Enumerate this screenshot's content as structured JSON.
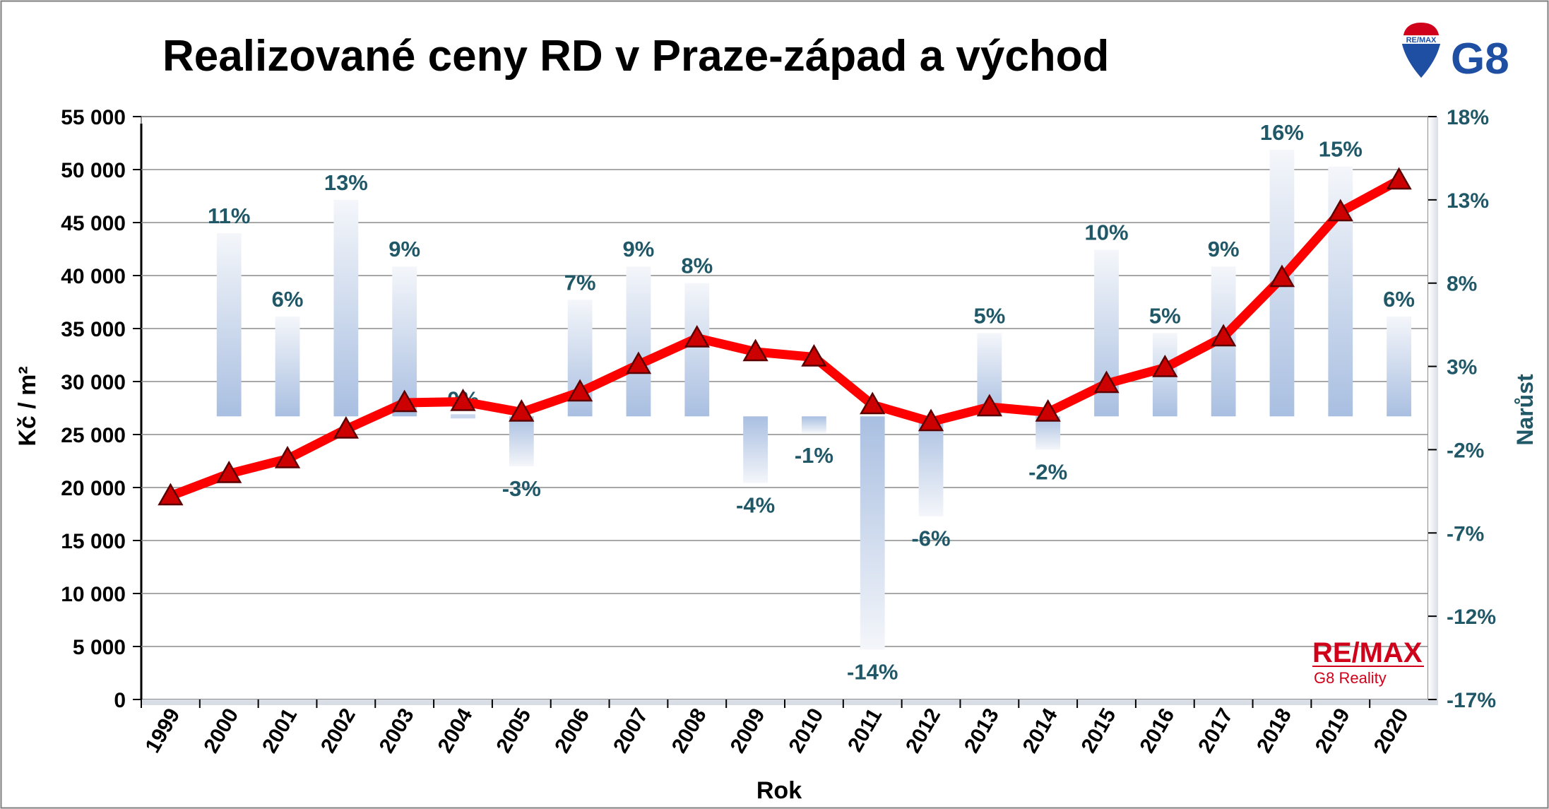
{
  "chart_data": {
    "type": "bar+line",
    "title": "Realizované ceny RD v Praze-západ a východ",
    "xlabel": "Rok",
    "ylabel": "Kč / m²",
    "y2label": "Narůst",
    "categories": [
      "1999",
      "2000",
      "2001",
      "2002",
      "2003",
      "2004",
      "2005",
      "2006",
      "2007",
      "2008",
      "2009",
      "2010",
      "2011",
      "2012",
      "2013",
      "2014",
      "2015",
      "2016",
      "2017",
      "2018",
      "2019",
      "2020"
    ],
    "price_series": {
      "name": "",
      "values": [
        19200,
        21300,
        22700,
        25500,
        28000,
        28100,
        27100,
        29000,
        31600,
        34100,
        32800,
        32300,
        27800,
        26200,
        27600,
        27100,
        29800,
        31300,
        34200,
        39800,
        46000,
        49000
      ]
    },
    "growth_series": {
      "name": "",
      "values": [
        null,
        11,
        6,
        13,
        9,
        0,
        -3,
        7,
        9,
        8,
        -4,
        -1,
        -14,
        -6,
        5,
        -2,
        10,
        5,
        9,
        16,
        15,
        6
      ],
      "labels": [
        "",
        "11%",
        "6%",
        "13%",
        "9%",
        "0%",
        "-3%",
        "7%",
        "9%",
        "8%",
        "-4%",
        "-1%",
        "-14%",
        "-6%",
        "5%",
        "-2%",
        "10%",
        "5%",
        "9%",
        "16%",
        "15%",
        "6%"
      ]
    },
    "ylim": [
      0,
      55000
    ],
    "yticks": [
      "0",
      "5 000",
      "10 000",
      "15 000",
      "20 000",
      "25 000",
      "30 000",
      "35 000",
      "40 000",
      "45 000",
      "50 000",
      "55 000"
    ],
    "y2lim": [
      -17,
      18
    ],
    "y2ticks": [
      "-17%",
      "-12%",
      "-7%",
      "-2%",
      "3%",
      "8%",
      "13%",
      "18%"
    ],
    "grid": true,
    "colors": {
      "line": "#ff0000",
      "marker_fill": "#cc0000",
      "bar_top": "#f4f6fa",
      "bar_bottom": "#aac0e2",
      "growth_label": "#215868",
      "grid": "#8c8c8c"
    }
  },
  "logos": {
    "top_right": {
      "balloon_text": "RE/MAX",
      "brand": "G8"
    },
    "bottom_right": {
      "line1": "RE/MAX",
      "line2": "G8 Reality"
    }
  }
}
